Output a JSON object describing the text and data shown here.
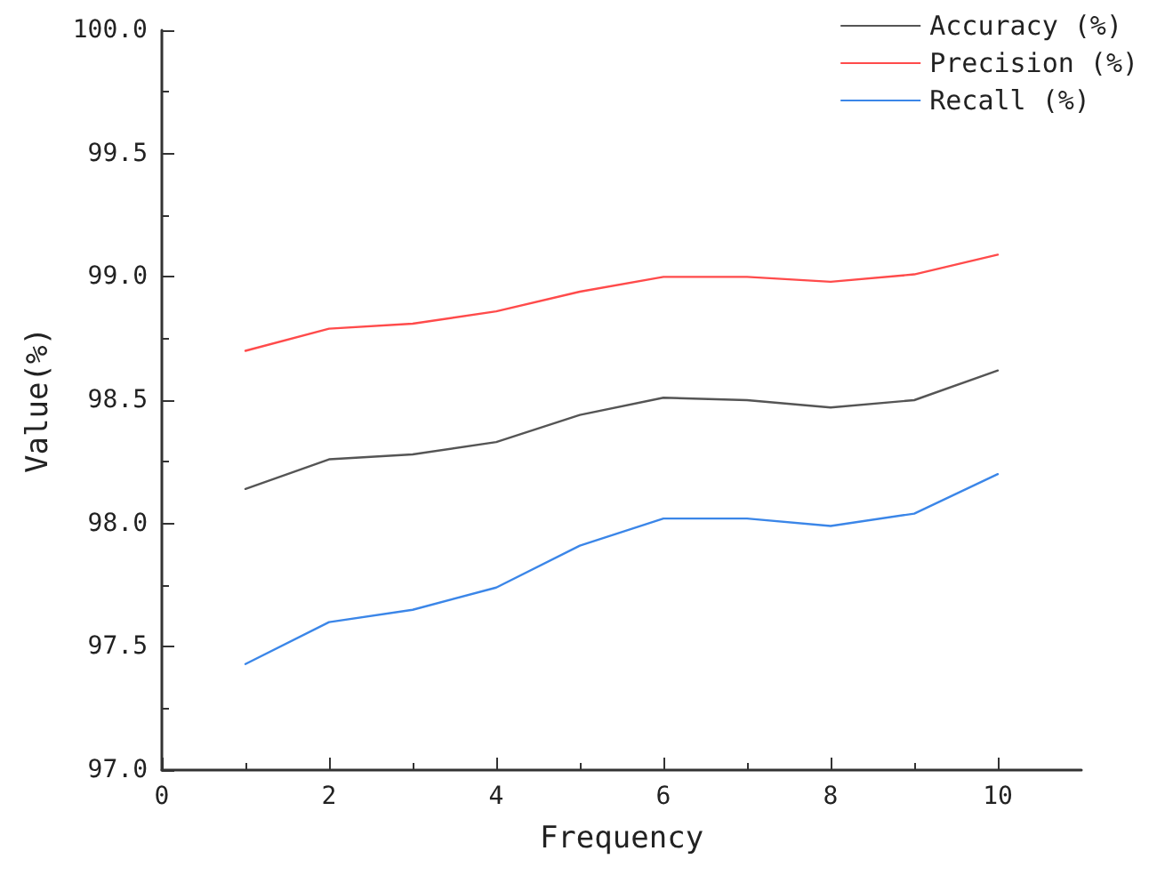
{
  "chart_data": {
    "type": "line",
    "xlabel": "Frequency",
    "ylabel": "Value(%)",
    "x": [
      1,
      2,
      3,
      4,
      5,
      6,
      7,
      8,
      9,
      10
    ],
    "series": [
      {
        "name": "Accuracy (%)",
        "color": "#555555",
        "values": [
          98.14,
          98.26,
          98.28,
          98.33,
          98.44,
          98.51,
          98.5,
          98.47,
          98.5,
          98.62
        ]
      },
      {
        "name": "Precision (%)",
        "color": "#ff4b4b",
        "values": [
          98.7,
          98.79,
          98.81,
          98.86,
          98.94,
          99.0,
          99.0,
          98.98,
          99.01,
          99.09
        ]
      },
      {
        "name": "Recall (%)",
        "color": "#3b86e8",
        "values": [
          97.43,
          97.6,
          97.65,
          97.74,
          97.91,
          98.02,
          98.02,
          97.99,
          98.04,
          98.2
        ]
      }
    ],
    "xlim": [
      0,
      11
    ],
    "xticks": [
      0,
      2,
      4,
      6,
      8,
      10
    ],
    "ylim": [
      97.0,
      100.0
    ],
    "yticks": [
      {
        "value": 97,
        "label": "97.0"
      },
      {
        "value": 97.5,
        "label": "97.5"
      },
      {
        "value": 98,
        "label": "98.0"
      },
      {
        "value": 98.5,
        "label": "98.5"
      },
      {
        "value": 99,
        "label": "99.0"
      },
      {
        "value": 99.5,
        "label": "99.5"
      },
      {
        "value": 100,
        "label": "100.0"
      }
    ],
    "grid": false,
    "legend": "top right",
    "marker": "none",
    "line_style": "solid"
  }
}
